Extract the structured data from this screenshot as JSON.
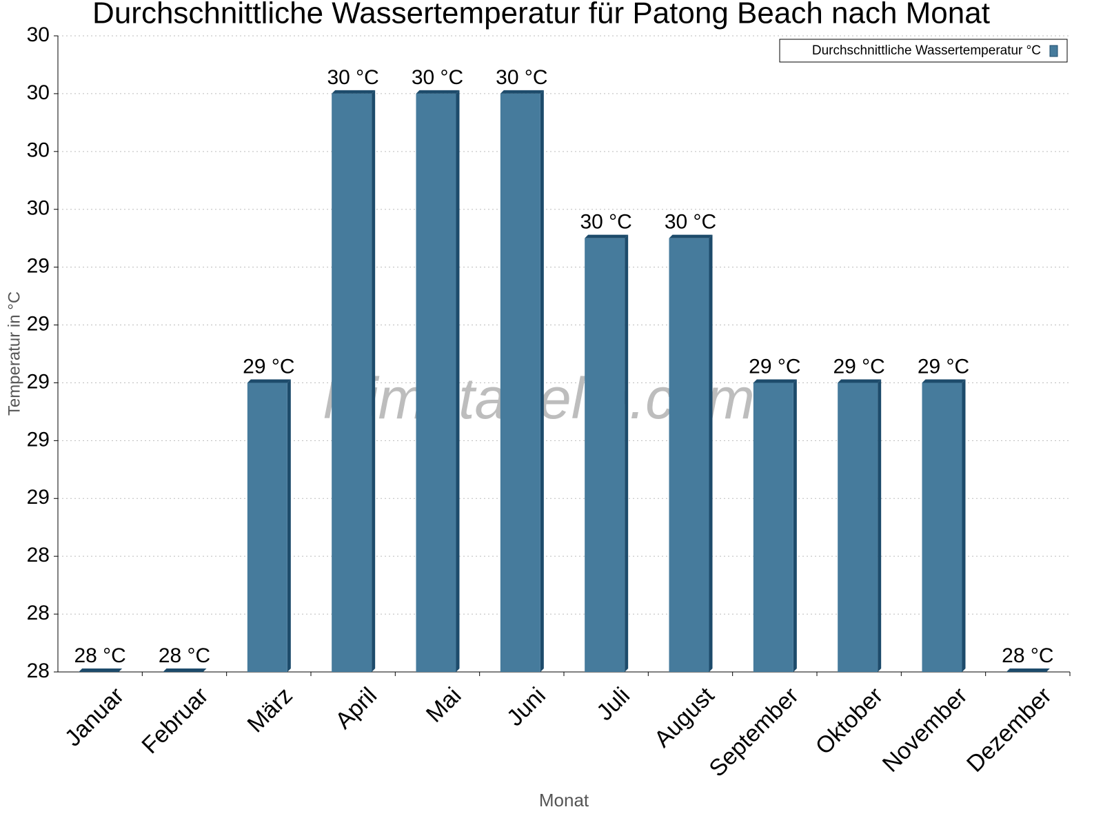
{
  "chart_data": {
    "type": "bar",
    "title": "Durchschnittliche Wassertemperatur für Patong Beach nach Monat",
    "x_label": "Monat",
    "y_label": "Temperatur in °C",
    "watermark": "klimatabelle.com",
    "categories": [
      "Januar",
      "Februar",
      "März",
      "April",
      "Mai",
      "Juni",
      "Juli",
      "August",
      "September",
      "Oktober",
      "November",
      "Dezember"
    ],
    "series": [
      {
        "name": "Durchschnittliche Wassertemperatur °C",
        "color": "#467b9c",
        "values": [
          28.0,
          28.0,
          29.0,
          30.0,
          30.0,
          30.0,
          29.5,
          29.5,
          29.0,
          29.0,
          29.0,
          28.0
        ],
        "value_labels": [
          "28 °C",
          "28 °C",
          "29 °C",
          "30 °C",
          "30 °C",
          "30 °C",
          "30 °C",
          "30 °C",
          "29 °C",
          "29 °C",
          "29 °C",
          "28 °C"
        ]
      }
    ],
    "ylim": [
      28,
      30.2
    ],
    "yticks": [
      28,
      {
        "value": 28.2,
        "label": "28"
      },
      {
        "value": 28.4,
        "label": "28"
      },
      {
        "value": 28.6,
        "label": "29"
      },
      {
        "value": 28.8,
        "label": "29"
      },
      29,
      {
        "value": 29.2,
        "label": "29"
      },
      {
        "value": 29.4,
        "label": "29"
      },
      {
        "value": 29.6,
        "label": "30"
      },
      {
        "value": 29.8,
        "label": "30"
      },
      30,
      {
        "value": 30.2,
        "label": "30"
      }
    ],
    "grid": true,
    "legend": "upper right"
  }
}
